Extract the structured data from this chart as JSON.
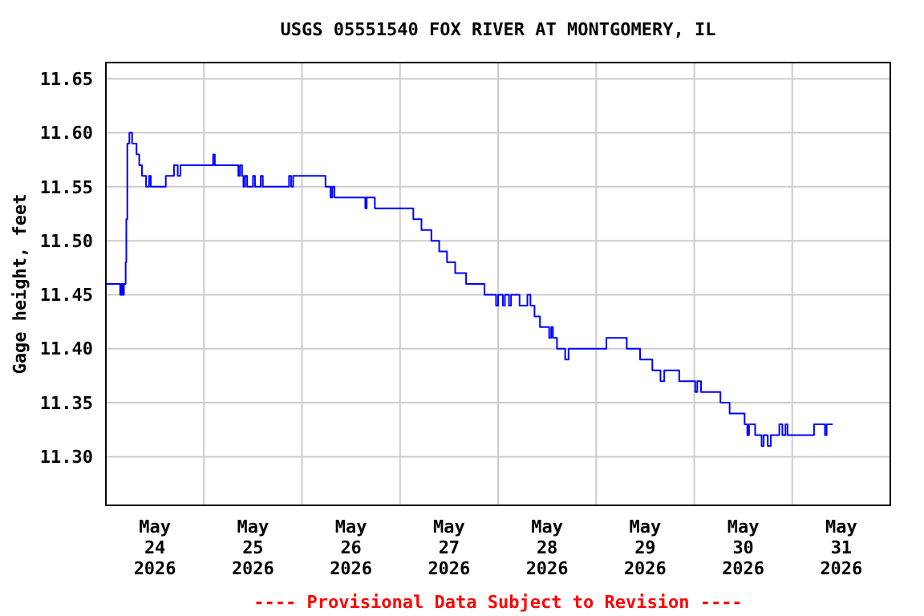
{
  "chart_data": {
    "type": "step",
    "title": "USGS 05551540 FOX RIVER AT MONTGOMERY, IL",
    "ylabel": "Gage height, feet",
    "annotations": [
      "---- Provisional Data Subject to Revision ----"
    ],
    "xlim": [
      "2026-05-24T00:00",
      "2026-06-01T00:00"
    ],
    "xticks": [
      {
        "value": "2026-05-24T12:00",
        "label": "May\n24\n2026"
      },
      {
        "value": "2026-05-25T00:00",
        "label": null
      },
      {
        "value": "2026-05-25T12:00",
        "label": "May\n25\n2026"
      },
      {
        "value": "2026-05-26T00:00",
        "label": null
      },
      {
        "value": "2026-05-26T12:00",
        "label": "May\n26\n2026"
      },
      {
        "value": "2026-05-27T00:00",
        "label": null
      },
      {
        "value": "2026-05-27T12:00",
        "label": "May\n27\n2026"
      },
      {
        "value": "2026-05-28T00:00",
        "label": null
      },
      {
        "value": "2026-05-28T12:00",
        "label": "May\n28\n2026"
      },
      {
        "value": "2026-05-29T00:00",
        "label": null
      },
      {
        "value": "2026-05-29T12:00",
        "label": "May\n29\n2026"
      },
      {
        "value": "2026-05-30T00:00",
        "label": null
      },
      {
        "value": "2026-05-30T12:00",
        "label": "May\n30\n2026"
      },
      {
        "value": "2026-05-31T00:00",
        "label": null
      },
      {
        "value": "2026-05-31T12:00",
        "label": "May\n31\n2026"
      }
    ],
    "ylim": [
      11.255,
      11.665
    ],
    "yticks": [
      {
        "value": 11.3,
        "label": "11.30"
      },
      {
        "value": 11.35,
        "label": "11.35"
      },
      {
        "value": 11.4,
        "label": "11.40"
      },
      {
        "value": 11.45,
        "label": "11.45"
      },
      {
        "value": 11.5,
        "label": "11.50"
      },
      {
        "value": 11.55,
        "label": "11.55"
      },
      {
        "value": 11.6,
        "label": "11.60"
      },
      {
        "value": 11.65,
        "label": "11.65"
      }
    ],
    "grid": true,
    "series": [
      {
        "color": "#0000ff",
        "x": [
          "2026-05-24T00:00",
          "2026-05-24T03:30",
          "2026-05-24T03:50",
          "2026-05-24T04:05",
          "2026-05-24T04:25",
          "2026-05-24T04:50",
          "2026-05-24T05:00",
          "2026-05-24T05:15",
          "2026-05-24T05:45",
          "2026-05-24T06:25",
          "2026-05-24T07:30",
          "2026-05-24T08:10",
          "2026-05-24T08:50",
          "2026-05-24T09:50",
          "2026-05-24T10:35",
          "2026-05-24T11:00",
          "2026-05-24T14:40",
          "2026-05-24T16:40",
          "2026-05-24T17:35",
          "2026-05-24T18:15",
          "2026-05-25T02:15",
          "2026-05-25T02:40",
          "2026-05-25T08:25",
          "2026-05-25T08:50",
          "2026-05-25T09:20",
          "2026-05-25T09:40",
          "2026-05-25T10:05",
          "2026-05-25T10:35",
          "2026-05-25T12:00",
          "2026-05-25T12:30",
          "2026-05-25T13:55",
          "2026-05-25T14:25",
          "2026-05-25T20:50",
          "2026-05-25T21:20",
          "2026-05-25T21:50",
          "2026-05-26T05:45",
          "2026-05-26T07:00",
          "2026-05-26T07:25",
          "2026-05-26T07:55",
          "2026-05-26T15:30",
          "2026-05-26T15:50",
          "2026-05-26T17:50",
          "2026-05-27T03:15",
          "2026-05-27T05:15",
          "2026-05-27T07:40",
          "2026-05-27T09:35",
          "2026-05-27T11:30",
          "2026-05-27T13:30",
          "2026-05-27T16:10",
          "2026-05-27T20:40",
          "2026-05-27T23:30",
          "2026-05-28T00:00",
          "2026-05-28T01:10",
          "2026-05-28T01:40",
          "2026-05-28T02:40",
          "2026-05-28T03:10",
          "2026-05-28T05:15",
          "2026-05-28T07:10",
          "2026-05-28T07:55",
          "2026-05-28T08:55",
          "2026-05-28T10:15",
          "2026-05-28T12:30",
          "2026-05-28T13:00",
          "2026-05-28T13:25",
          "2026-05-28T14:25",
          "2026-05-28T16:25",
          "2026-05-28T17:15",
          "2026-05-29T02:30",
          "2026-05-29T07:30",
          "2026-05-29T10:45",
          "2026-05-29T13:45",
          "2026-05-29T15:45",
          "2026-05-29T16:40",
          "2026-05-29T20:20",
          "2026-05-30T00:15",
          "2026-05-30T00:45",
          "2026-05-30T01:40",
          "2026-05-30T06:25",
          "2026-05-30T08:40",
          "2026-05-30T12:20",
          "2026-05-30T13:00",
          "2026-05-30T13:25",
          "2026-05-30T14:55",
          "2026-05-30T16:30",
          "2026-05-30T17:00",
          "2026-05-30T18:00",
          "2026-05-30T18:45",
          "2026-05-30T20:50",
          "2026-05-30T21:35",
          "2026-05-30T22:20",
          "2026-05-30T22:50",
          "2026-05-31T05:20",
          "2026-05-31T08:00",
          "2026-05-31T08:25",
          "2026-05-31T09:55"
        ],
        "values": [
          11.46,
          11.45,
          11.46,
          11.45,
          11.46,
          11.48,
          11.52,
          11.59,
          11.6,
          11.59,
          11.58,
          11.57,
          11.56,
          11.55,
          11.56,
          11.55,
          11.56,
          11.57,
          11.56,
          11.57,
          11.58,
          11.57,
          11.56,
          11.57,
          11.56,
          11.55,
          11.56,
          11.55,
          11.56,
          11.55,
          11.56,
          11.55,
          11.56,
          11.55,
          11.56,
          11.55,
          11.54,
          11.55,
          11.54,
          11.53,
          11.54,
          11.53,
          11.52,
          11.51,
          11.5,
          11.49,
          11.48,
          11.47,
          11.46,
          11.45,
          11.44,
          11.45,
          11.44,
          11.45,
          11.44,
          11.45,
          11.44,
          11.45,
          11.44,
          11.43,
          11.42,
          11.41,
          11.42,
          11.41,
          11.4,
          11.39,
          11.4,
          11.41,
          11.4,
          11.39,
          11.38,
          11.37,
          11.38,
          11.37,
          11.36,
          11.37,
          11.36,
          11.35,
          11.34,
          11.33,
          11.32,
          11.33,
          11.32,
          11.31,
          11.32,
          11.31,
          11.32,
          11.33,
          11.32,
          11.33,
          11.32,
          11.33,
          11.32,
          11.33,
          11.33
        ]
      }
    ]
  }
}
